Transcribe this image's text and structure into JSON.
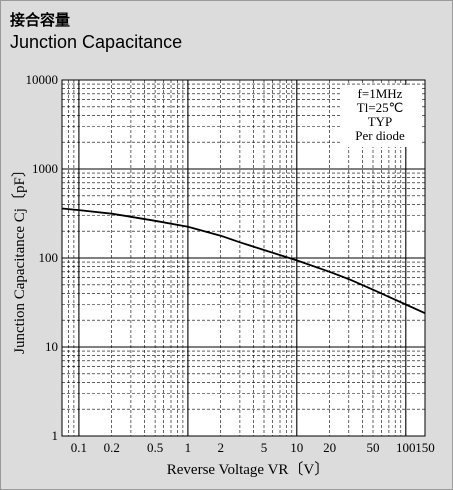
{
  "title_jp": "接合容量",
  "title_en": "Junction Capacitance",
  "chart_data": {
    "type": "line",
    "title": "Junction Capacitance",
    "xlabel": "Reverse Voltage  VR〔V〕",
    "ylabel": "Junction Capacitance  Cj〔pF〕",
    "x_scale": "log",
    "y_scale": "log",
    "xlim": [
      0.07,
      150
    ],
    "ylim": [
      1,
      10000
    ],
    "grid": true,
    "x_tick_labels": [
      "0.1",
      "0.2",
      "0.5",
      "1",
      "2",
      "5",
      "10",
      "20",
      "50",
      "100",
      "150"
    ],
    "x_tick_values": [
      0.1,
      0.2,
      0.5,
      1,
      2,
      5,
      10,
      20,
      50,
      100,
      150
    ],
    "y_tick_labels": [
      "1",
      "10",
      "100",
      "1000",
      "10000"
    ],
    "y_tick_values": [
      1,
      10,
      100,
      1000,
      10000
    ],
    "annotations": [
      "f=1MHz",
      "Tl=25℃",
      "TYP",
      "Per diode"
    ],
    "series": [
      {
        "x": [
          0.07,
          0.1,
          0.2,
          0.3,
          0.5,
          1,
          2,
          3,
          5,
          10,
          20,
          30,
          50,
          100,
          150
        ],
        "y": [
          360,
          345,
          315,
          290,
          262,
          225,
          178,
          150,
          123,
          94,
          70,
          58,
          44,
          30,
          24
        ]
      }
    ]
  }
}
